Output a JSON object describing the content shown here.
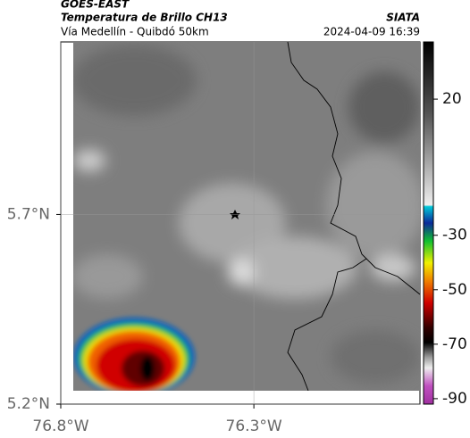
{
  "header": {
    "agency": "GOES-EAST",
    "product": "Temperatura de Brillo CH13",
    "region": "Vía Medellín - Quibdó 50km",
    "org": "SIATA",
    "timestamp": "2024-04-09 16:39"
  },
  "map": {
    "xlim": [
      -76.8,
      -75.87
    ],
    "ylim": [
      5.2,
      6.155
    ],
    "xticks": [
      {
        "value": -76.8,
        "label": "76.8°W"
      },
      {
        "value": -76.3,
        "label": "76.3°W"
      }
    ],
    "yticks": [
      {
        "value": 5.2,
        "label": "5.2°N"
      },
      {
        "value": 5.7,
        "label": "5.7°N"
      }
    ]
  },
  "colorbar": {
    "lim": [
      -92,
      41
    ],
    "ticks": [
      20,
      -30,
      -50,
      -70,
      -90
    ]
  }
}
